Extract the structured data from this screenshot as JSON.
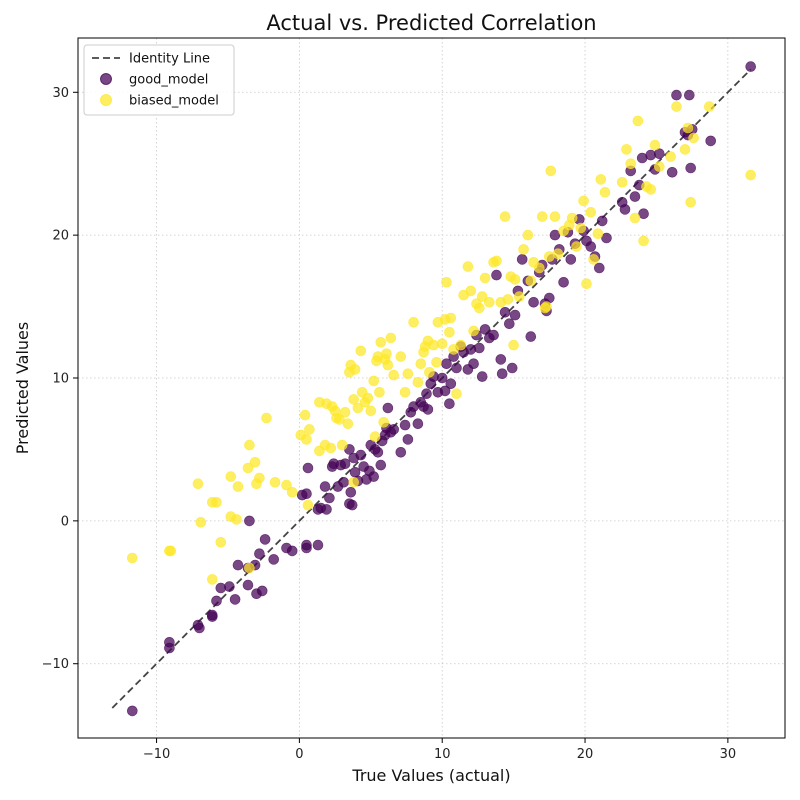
{
  "chart_data": {
    "type": "scatter",
    "title": "Actual vs. Predicted Correlation",
    "xlabel": "True Values (actual)",
    "ylabel": "Predicted Values",
    "xlim": [
      -15.5,
      34
    ],
    "ylim": [
      -15.2,
      33.8
    ],
    "xticks": [
      -10,
      0,
      10,
      20,
      30
    ],
    "yticks": [
      -10,
      0,
      10,
      20,
      30
    ],
    "xtick_labels": [
      "−10",
      "0",
      "10",
      "20",
      "30"
    ],
    "ytick_labels": [
      "−10",
      "0",
      "10",
      "20",
      "30"
    ],
    "grid": true,
    "legend_position": "top-left",
    "identity_line": {
      "name": "Identity Line",
      "x": [
        -13.1,
        31.6
      ],
      "y": [
        -13.1,
        31.6
      ],
      "color": "#444444",
      "style": "dashed"
    },
    "series": [
      {
        "name": "good_model",
        "color": "#440154",
        "points": [
          [
            -11.7,
            -13.3
          ],
          [
            -9.1,
            -8.5
          ],
          [
            -9.1,
            -8.9
          ],
          [
            -7.1,
            -7.3
          ],
          [
            -7.0,
            -7.5
          ],
          [
            -6.1,
            -6.7
          ],
          [
            -6.1,
            -6.6
          ],
          [
            -5.8,
            -5.6
          ],
          [
            -5.5,
            -4.7
          ],
          [
            -4.9,
            -4.6
          ],
          [
            -4.5,
            -5.5
          ],
          [
            -4.3,
            -3.1
          ],
          [
            -3.6,
            -4.5
          ],
          [
            -3.6,
            -3.3
          ],
          [
            -3.5,
            0.0
          ],
          [
            -3.1,
            -3.1
          ],
          [
            -3.0,
            -5.1
          ],
          [
            -2.8,
            -2.3
          ],
          [
            -2.6,
            -4.9
          ],
          [
            -2.4,
            -1.3
          ],
          [
            -1.8,
            -2.7
          ],
          [
            -0.9,
            -1.9
          ],
          [
            -0.5,
            -2.1
          ],
          [
            0.2,
            1.8
          ],
          [
            0.5,
            1.9
          ],
          [
            0.5,
            -1.7
          ],
          [
            0.5,
            -1.9
          ],
          [
            0.6,
            3.7
          ],
          [
            1.3,
            0.8
          ],
          [
            1.3,
            -1.7
          ],
          [
            1.5,
            0.9
          ],
          [
            1.8,
            2.4
          ],
          [
            1.9,
            0.8
          ],
          [
            2.1,
            1.6
          ],
          [
            2.3,
            3.8
          ],
          [
            2.4,
            4.0
          ],
          [
            2.7,
            2.4
          ],
          [
            2.9,
            3.9
          ],
          [
            3.1,
            2.7
          ],
          [
            3.2,
            4.0
          ],
          [
            3.5,
            1.2
          ],
          [
            3.5,
            5.0
          ],
          [
            3.6,
            2.0
          ],
          [
            3.7,
            1.1
          ],
          [
            3.8,
            4.4
          ],
          [
            3.9,
            3.4
          ],
          [
            4.1,
            2.8
          ],
          [
            4.3,
            4.6
          ],
          [
            4.5,
            3.8
          ],
          [
            4.7,
            2.9
          ],
          [
            4.9,
            3.5
          ],
          [
            5.0,
            5.3
          ],
          [
            5.2,
            3.1
          ],
          [
            5.3,
            5.0
          ],
          [
            5.5,
            4.8
          ],
          [
            5.7,
            3.9
          ],
          [
            5.8,
            5.6
          ],
          [
            6.0,
            6.0
          ],
          [
            6.1,
            6.5
          ],
          [
            6.2,
            7.9
          ],
          [
            6.4,
            6.2
          ],
          [
            6.6,
            6.4
          ],
          [
            7.1,
            4.8
          ],
          [
            7.4,
            6.7
          ],
          [
            7.6,
            5.7
          ],
          [
            7.8,
            7.6
          ],
          [
            8.0,
            8.0
          ],
          [
            8.3,
            6.8
          ],
          [
            8.5,
            8.3
          ],
          [
            8.7,
            8.0
          ],
          [
            8.9,
            8.9
          ],
          [
            9.0,
            7.8
          ],
          [
            9.2,
            9.6
          ],
          [
            9.4,
            10.1
          ],
          [
            9.7,
            9.0
          ],
          [
            10.0,
            10.0
          ],
          [
            10.2,
            9.1
          ],
          [
            10.3,
            11.0
          ],
          [
            10.5,
            8.2
          ],
          [
            10.6,
            9.6
          ],
          [
            10.8,
            11.5
          ],
          [
            11.0,
            10.7
          ],
          [
            11.3,
            12.2
          ],
          [
            11.5,
            11.8
          ],
          [
            11.8,
            10.6
          ],
          [
            12.0,
            12.0
          ],
          [
            12.2,
            11.0
          ],
          [
            12.4,
            13.0
          ],
          [
            12.6,
            12.1
          ],
          [
            12.8,
            10.1
          ],
          [
            13.0,
            13.4
          ],
          [
            13.3,
            12.8
          ],
          [
            13.6,
            13.0
          ],
          [
            13.8,
            17.2
          ],
          [
            14.1,
            11.3
          ],
          [
            14.2,
            10.3
          ],
          [
            14.4,
            14.6
          ],
          [
            14.7,
            13.8
          ],
          [
            14.9,
            10.7
          ],
          [
            15.1,
            14.4
          ],
          [
            15.3,
            16.1
          ],
          [
            15.6,
            18.3
          ],
          [
            16.0,
            16.8
          ],
          [
            16.2,
            12.9
          ],
          [
            16.4,
            15.3
          ],
          [
            16.8,
            17.4
          ],
          [
            17.0,
            17.9
          ],
          [
            17.2,
            15.2
          ],
          [
            17.3,
            14.7
          ],
          [
            17.5,
            15.6
          ],
          [
            17.7,
            18.3
          ],
          [
            17.9,
            20.0
          ],
          [
            18.2,
            19.0
          ],
          [
            18.5,
            16.7
          ],
          [
            18.8,
            20.2
          ],
          [
            19.0,
            18.3
          ],
          [
            19.3,
            19.4
          ],
          [
            19.6,
            21.1
          ],
          [
            19.9,
            20.3
          ],
          [
            20.1,
            19.6
          ],
          [
            20.4,
            19.2
          ],
          [
            20.7,
            18.5
          ],
          [
            21.0,
            17.7
          ],
          [
            21.2,
            21.0
          ],
          [
            21.5,
            19.8
          ],
          [
            22.6,
            22.3
          ],
          [
            22.8,
            21.8
          ],
          [
            23.2,
            24.5
          ],
          [
            23.5,
            22.7
          ],
          [
            23.8,
            23.5
          ],
          [
            24.0,
            25.4
          ],
          [
            24.1,
            21.5
          ],
          [
            24.6,
            25.6
          ],
          [
            24.9,
            24.6
          ],
          [
            25.2,
            25.7
          ],
          [
            26.1,
            24.4
          ],
          [
            26.4,
            29.8
          ],
          [
            27.0,
            27.2
          ],
          [
            27.2,
            27.0
          ],
          [
            27.3,
            29.8
          ],
          [
            27.4,
            24.7
          ],
          [
            27.5,
            27.4
          ],
          [
            28.8,
            26.6
          ],
          [
            31.6,
            31.8
          ]
        ]
      },
      {
        "name": "biased_model",
        "color": "#fde725",
        "points": [
          [
            -11.7,
            -2.6
          ],
          [
            -9.1,
            -2.1
          ],
          [
            -9.0,
            -2.1
          ],
          [
            -7.1,
            2.6
          ],
          [
            -6.9,
            -0.1
          ],
          [
            -6.1,
            -4.1
          ],
          [
            -6.1,
            1.3
          ],
          [
            -5.8,
            1.3
          ],
          [
            -5.5,
            -1.5
          ],
          [
            -4.8,
            3.1
          ],
          [
            -4.8,
            0.3
          ],
          [
            -4.4,
            0.1
          ],
          [
            -4.3,
            2.4
          ],
          [
            -3.6,
            3.7
          ],
          [
            -3.5,
            5.3
          ],
          [
            -3.5,
            -3.3
          ],
          [
            -3.1,
            4.1
          ],
          [
            -3.0,
            2.6
          ],
          [
            -2.8,
            3.0
          ],
          [
            -2.3,
            7.2
          ],
          [
            -1.7,
            2.7
          ],
          [
            -0.9,
            2.5
          ],
          [
            -0.5,
            2.0
          ],
          [
            0.1,
            6.0
          ],
          [
            0.4,
            7.4
          ],
          [
            0.5,
            5.7
          ],
          [
            0.6,
            1.1
          ],
          [
            0.7,
            6.4
          ],
          [
            1.4,
            8.3
          ],
          [
            1.4,
            4.9
          ],
          [
            1.8,
            5.3
          ],
          [
            1.9,
            8.2
          ],
          [
            2.2,
            5.1
          ],
          [
            2.3,
            8.0
          ],
          [
            2.5,
            7.7
          ],
          [
            2.6,
            7.2
          ],
          [
            2.8,
            7.1
          ],
          [
            3.0,
            5.3
          ],
          [
            3.2,
            7.6
          ],
          [
            3.4,
            6.8
          ],
          [
            3.5,
            10.4
          ],
          [
            3.6,
            10.9
          ],
          [
            3.8,
            8.5
          ],
          [
            3.8,
            2.7
          ],
          [
            3.9,
            10.6
          ],
          [
            4.1,
            7.9
          ],
          [
            4.3,
            11.9
          ],
          [
            4.4,
            9.0
          ],
          [
            4.6,
            8.3
          ],
          [
            4.8,
            8.6
          ],
          [
            5.0,
            7.7
          ],
          [
            5.2,
            9.8
          ],
          [
            5.3,
            5.9
          ],
          [
            5.4,
            11.2
          ],
          [
            5.5,
            11.5
          ],
          [
            5.6,
            9.0
          ],
          [
            5.7,
            12.5
          ],
          [
            5.9,
            6.9
          ],
          [
            6.0,
            11.3
          ],
          [
            6.1,
            11.7
          ],
          [
            6.2,
            10.9
          ],
          [
            6.4,
            12.8
          ],
          [
            6.6,
            10.2
          ],
          [
            7.1,
            11.5
          ],
          [
            7.4,
            9.0
          ],
          [
            7.6,
            10.3
          ],
          [
            8.0,
            13.9
          ],
          [
            8.3,
            9.7
          ],
          [
            8.5,
            11.0
          ],
          [
            8.7,
            11.8
          ],
          [
            8.8,
            12.2
          ],
          [
            9.0,
            12.6
          ],
          [
            9.1,
            10.4
          ],
          [
            9.4,
            12.3
          ],
          [
            9.6,
            11.1
          ],
          [
            9.7,
            13.9
          ],
          [
            10.0,
            12.4
          ],
          [
            10.2,
            14.1
          ],
          [
            10.3,
            16.7
          ],
          [
            10.5,
            13.2
          ],
          [
            10.6,
            14.2
          ],
          [
            10.8,
            12.0
          ],
          [
            11.0,
            8.9
          ],
          [
            11.3,
            12.3
          ],
          [
            11.5,
            15.8
          ],
          [
            11.8,
            17.8
          ],
          [
            12.0,
            16.1
          ],
          [
            12.2,
            13.3
          ],
          [
            12.4,
            15.2
          ],
          [
            12.6,
            14.9
          ],
          [
            12.8,
            15.7
          ],
          [
            13.0,
            17.0
          ],
          [
            13.3,
            15.3
          ],
          [
            13.6,
            18.1
          ],
          [
            13.8,
            18.2
          ],
          [
            14.1,
            15.3
          ],
          [
            14.4,
            21.3
          ],
          [
            14.6,
            15.5
          ],
          [
            14.8,
            17.1
          ],
          [
            15.0,
            12.3
          ],
          [
            15.1,
            16.9
          ],
          [
            15.4,
            15.7
          ],
          [
            15.7,
            19.0
          ],
          [
            16.0,
            20.0
          ],
          [
            16.2,
            16.8
          ],
          [
            16.4,
            18.1
          ],
          [
            16.8,
            17.7
          ],
          [
            17.0,
            21.3
          ],
          [
            17.2,
            14.9
          ],
          [
            17.3,
            15.0
          ],
          [
            17.5,
            18.5
          ],
          [
            17.6,
            24.5
          ],
          [
            17.9,
            21.3
          ],
          [
            18.1,
            18.7
          ],
          [
            18.5,
            20.3
          ],
          [
            18.9,
            20.7
          ],
          [
            19.1,
            21.2
          ],
          [
            19.4,
            19.2
          ],
          [
            19.7,
            20.5
          ],
          [
            19.9,
            22.4
          ],
          [
            20.1,
            16.6
          ],
          [
            20.4,
            21.6
          ],
          [
            20.6,
            18.3
          ],
          [
            20.9,
            20.1
          ],
          [
            21.1,
            23.9
          ],
          [
            21.4,
            23.0
          ],
          [
            22.6,
            23.7
          ],
          [
            22.9,
            26.0
          ],
          [
            23.2,
            25.0
          ],
          [
            23.5,
            21.2
          ],
          [
            23.7,
            28.0
          ],
          [
            24.1,
            19.6
          ],
          [
            24.3,
            23.4
          ],
          [
            24.6,
            23.2
          ],
          [
            24.9,
            26.3
          ],
          [
            25.2,
            24.8
          ],
          [
            26.0,
            25.5
          ],
          [
            26.4,
            29.0
          ],
          [
            27.0,
            26.0
          ],
          [
            27.2,
            27.5
          ],
          [
            27.4,
            22.3
          ],
          [
            27.6,
            26.8
          ],
          [
            28.7,
            29.0
          ],
          [
            31.6,
            24.2
          ]
        ]
      }
    ]
  }
}
